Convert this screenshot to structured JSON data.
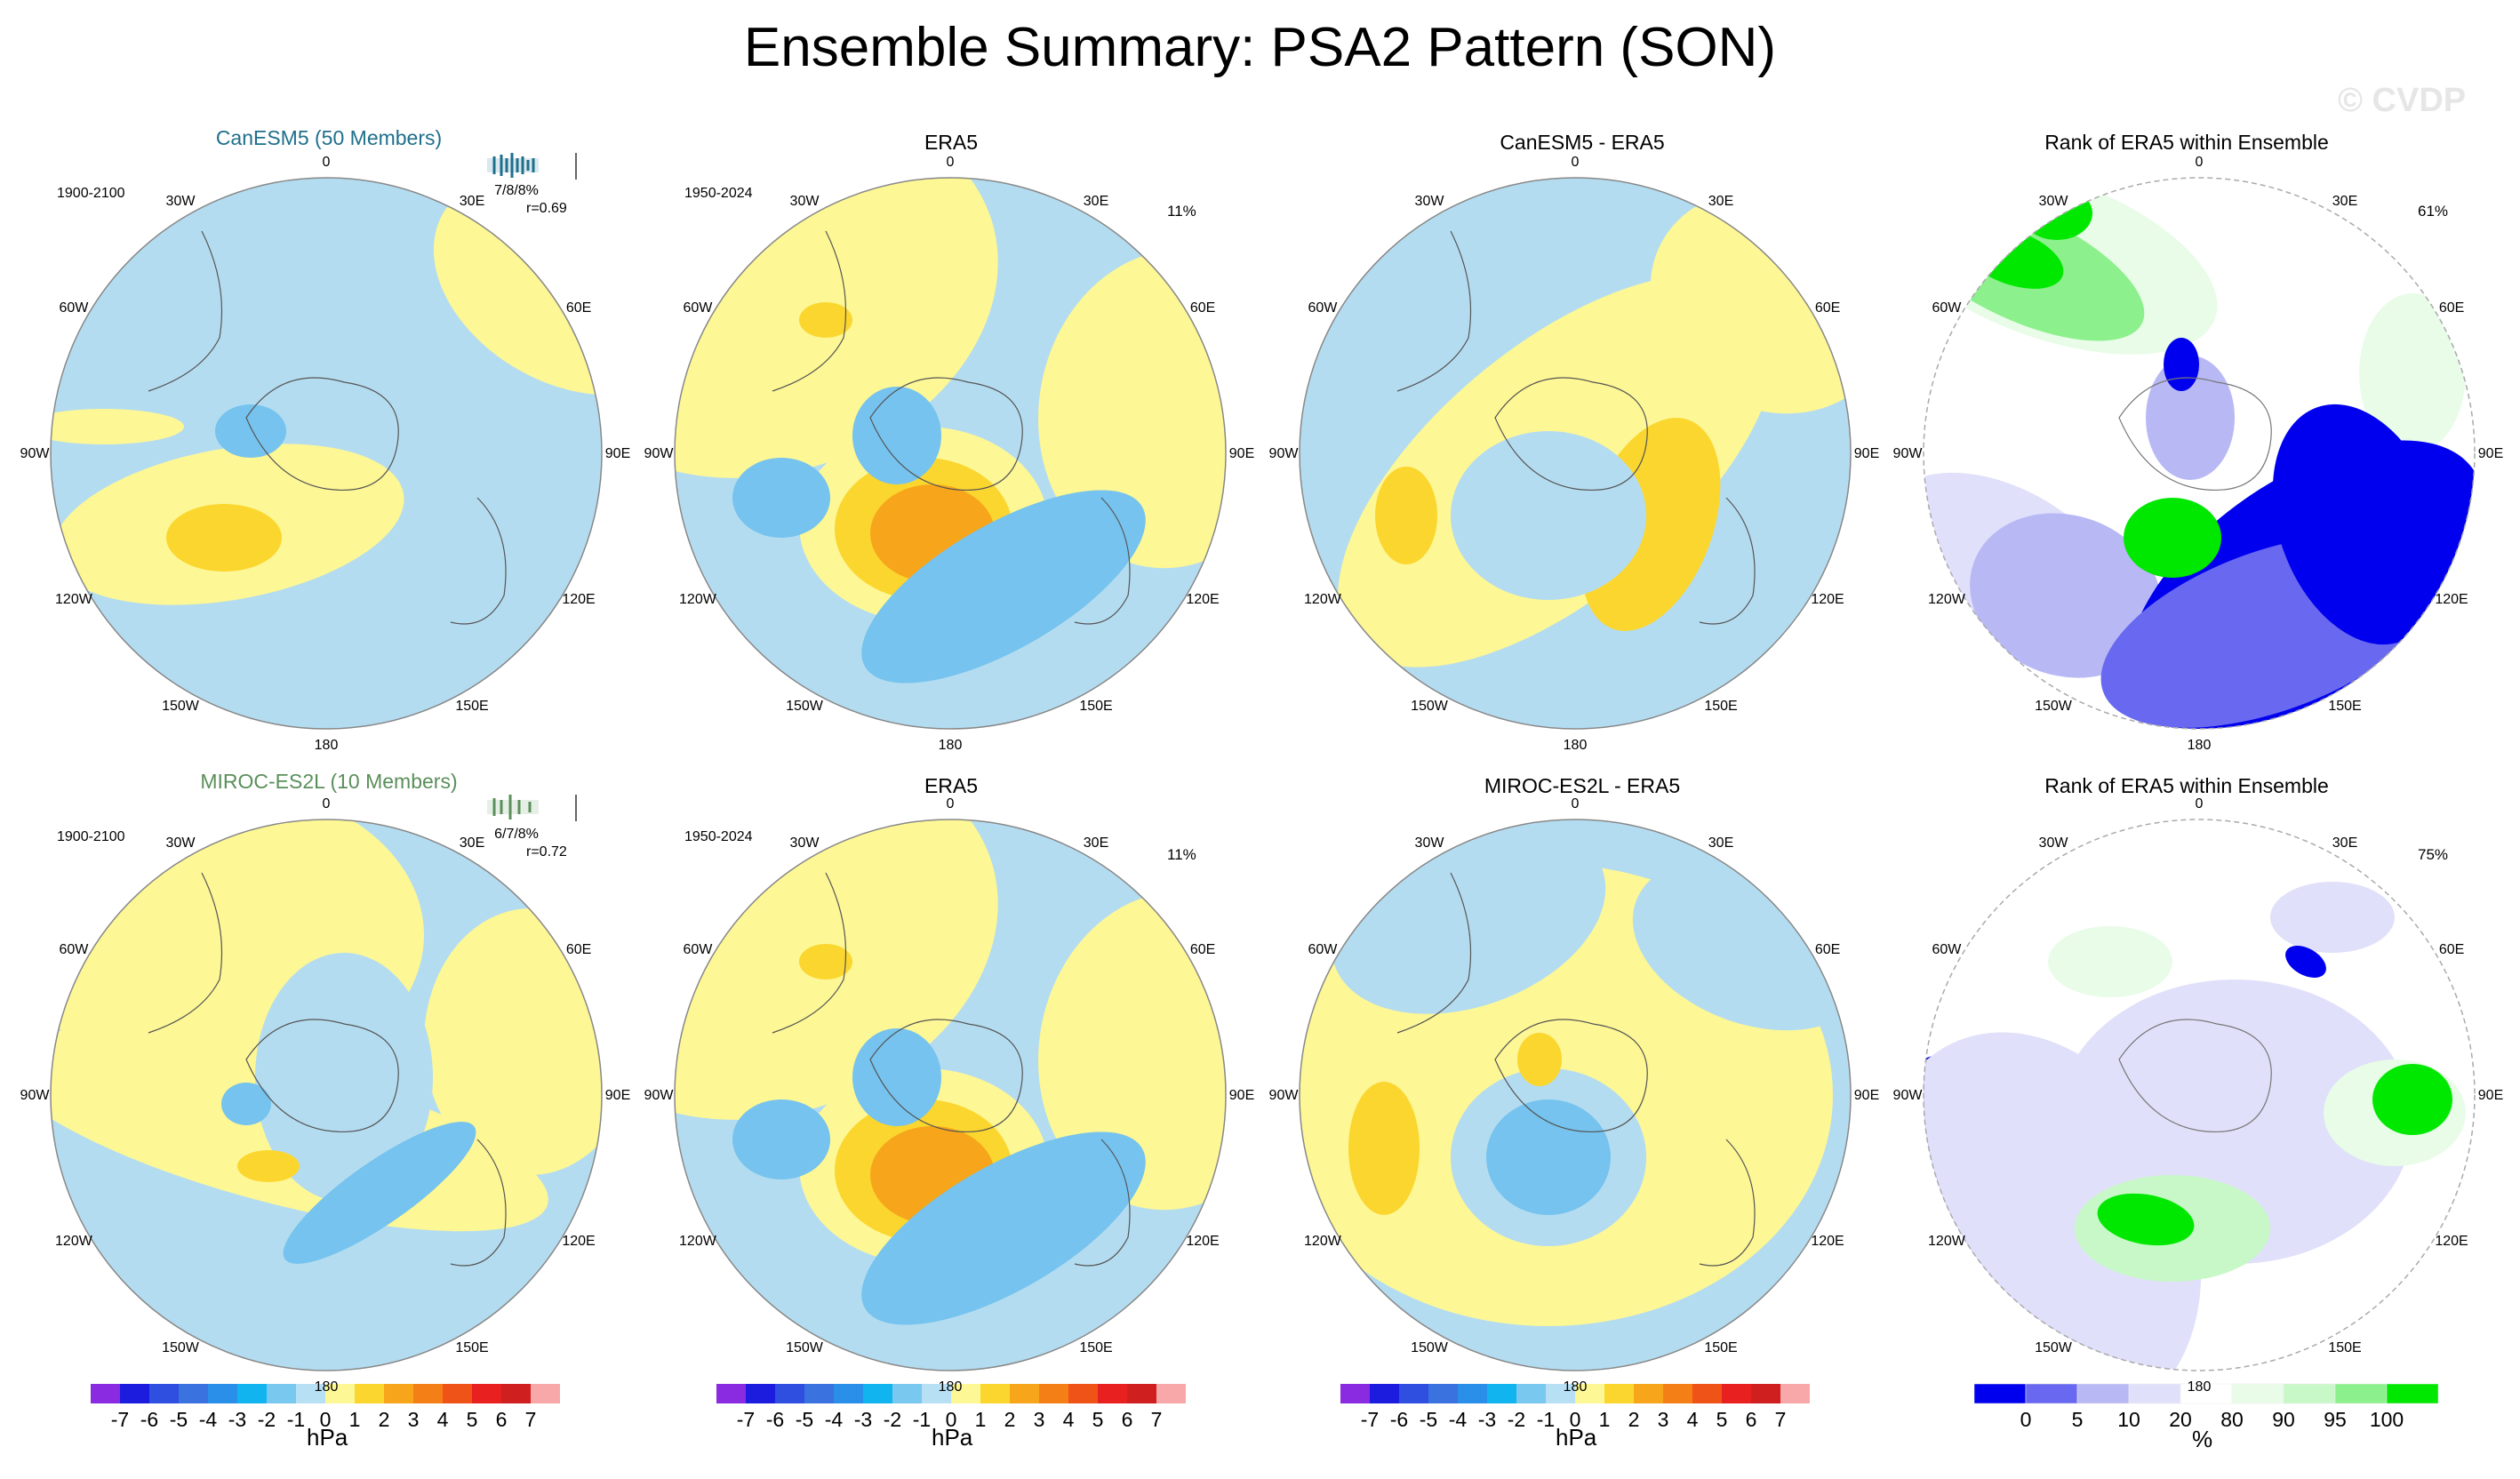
{
  "title": "Ensemble Summary: PSA2 Pattern (SON)",
  "watermark": "© CVDP",
  "colors": {
    "neg1": "#b4dcf0",
    "neg2": "#75c3ee",
    "neg3": "#5aaae8",
    "pos1": "#fdf795",
    "pos2": "#fbd62f",
    "pos3": "#f7a51a",
    "rank_blue": "#0000ee",
    "rank_blue2": "#6868f0",
    "rank_blue3": "#b8b8f5",
    "rank_blue4": "#e0e0fa",
    "rank_green": "#00e800",
    "rank_green2": "#8cf08c",
    "rank_green3": "#c8f8c8",
    "rank_green4": "#e8fce8"
  },
  "longitude_labels": [
    "0",
    "30E",
    "60E",
    "90E",
    "120E",
    "150E",
    "180",
    "150W",
    "120W",
    "90W",
    "60W",
    "30W"
  ],
  "rows": [
    {
      "model_title": "CanESM5 (50 Members)",
      "model_years": "1900-2100",
      "model_stats": "7/8/8%",
      "model_r": "r=0.69",
      "obs_title": "ERA5",
      "obs_years": "1950-2024",
      "obs_pct": "11%",
      "diff_title": "CanESM5 - ERA5",
      "rank_title": "Rank of ERA5 within Ensemble",
      "rank_pct": "61%"
    },
    {
      "model_title": "MIROC-ES2L (10 Members)",
      "model_years": "1900-2100",
      "model_stats": "6/7/8%",
      "model_r": "r=0.72",
      "obs_title": "ERA5",
      "obs_years": "1950-2024",
      "obs_pct": "11%",
      "diff_title": "MIROC-ES2L - ERA5",
      "rank_title": "Rank of ERA5 within Ensemble",
      "rank_pct": "75%"
    }
  ],
  "chart_data": [
    {
      "type": "heatmap",
      "title": "Ensemble Summary: PSA2 Pattern (SON)",
      "projection": "south polar stereographic",
      "panels": [
        "CanESM5 (50 Members)",
        "ERA5",
        "CanESM5 - ERA5",
        "Rank of ERA5 within Ensemble",
        "MIROC-ES2L (10 Members)",
        "ERA5",
        "MIROC-ES2L - ERA5",
        "Rank of ERA5 within Ensemble"
      ],
      "colorbar_hpa": {
        "levels": [
          "-7",
          "-6",
          "-5",
          "-4",
          "-3",
          "-2",
          "-1",
          "0",
          "1",
          "2",
          "3",
          "4",
          "5",
          "6",
          "7"
        ],
        "colors": [
          "#8a2be2",
          "#1c1cde",
          "#2f4fe0",
          "#3a72e0",
          "#2a8fe8",
          "#12b4f0",
          "#78c8f0",
          "#b8e0f5",
          "#fdf795",
          "#fbd62f",
          "#f7a51a",
          "#f57f17",
          "#ef5318",
          "#e82020",
          "#cf1f1f",
          "#f8a8a8"
        ],
        "unit": "hPa"
      },
      "colorbar_rank": {
        "levels": [
          "0",
          "5",
          "10",
          "20",
          "80",
          "90",
          "95",
          "100"
        ],
        "colors": [
          "#0000ee",
          "#6868f0",
          "#b8b8f5",
          "#e0e0fa",
          "#ffffff",
          "#e8fce8",
          "#c8f8c8",
          "#8cf08c",
          "#00e800"
        ],
        "unit": "%"
      }
    }
  ]
}
